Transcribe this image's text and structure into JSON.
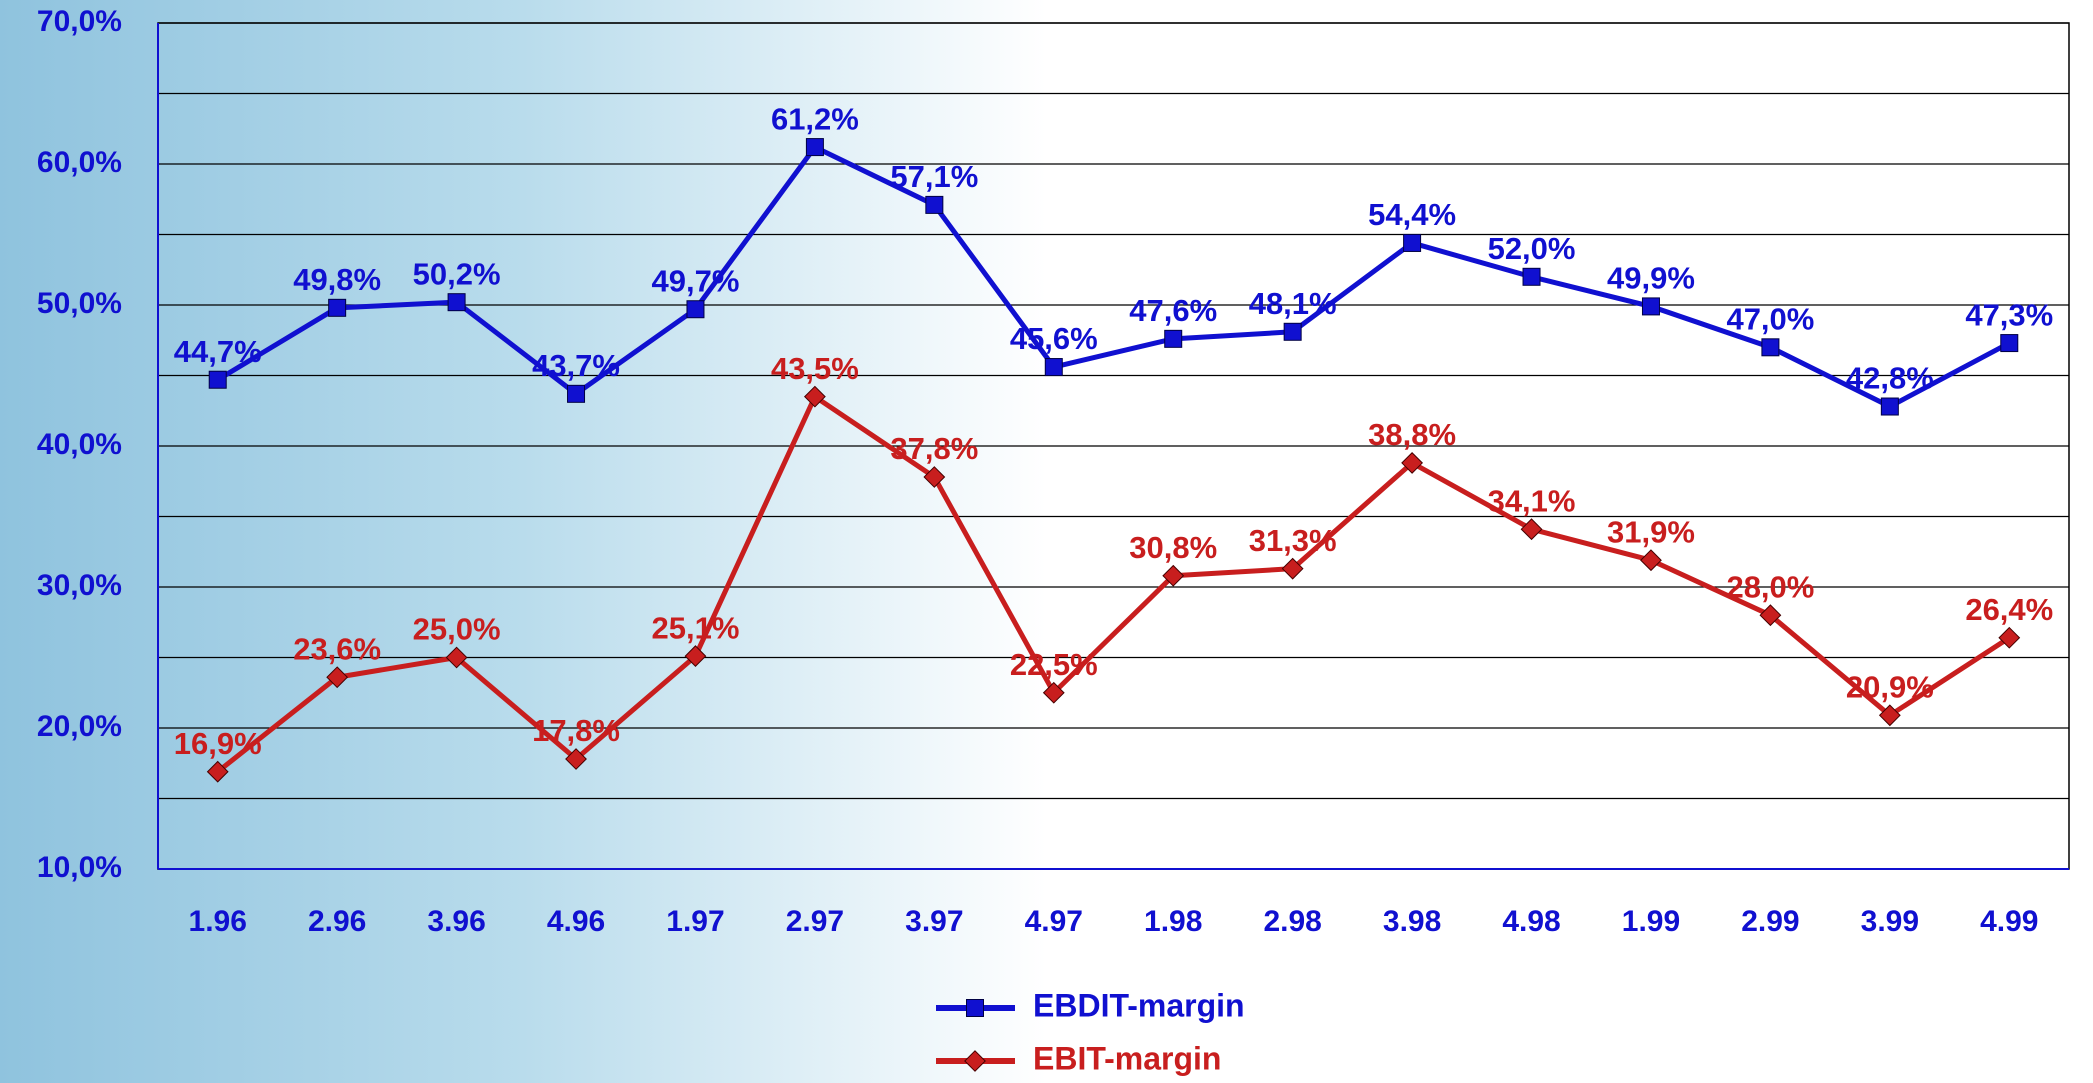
{
  "chart_data": {
    "type": "line",
    "categories": [
      "1.96",
      "2.96",
      "3.96",
      "4.96",
      "1.97",
      "2.97",
      "3.97",
      "4.97",
      "1.98",
      "2.98",
      "3.98",
      "4.98",
      "1.99",
      "2.99",
      "3.99",
      "4.99"
    ],
    "series": [
      {
        "name": "EBDIT-margin",
        "color": "#1010d0",
        "marker": "square",
        "values": [
          44.7,
          49.8,
          50.2,
          43.7,
          49.7,
          61.2,
          57.1,
          45.6,
          47.6,
          48.1,
          54.4,
          52.0,
          49.9,
          47.0,
          42.8,
          47.3
        ],
        "value_labels": [
          "44,7%",
          "49,8%",
          "50,2%",
          "43,7%",
          "49,7%",
          "61,2%",
          "57,1%",
          "45,6%",
          "47,6%",
          "48,1%",
          "54,4%",
          "52,0%",
          "49,9%",
          "47,0%",
          "42,8%",
          "47,3%"
        ]
      },
      {
        "name": "EBIT-margin",
        "color": "#c81e1e",
        "marker": "diamond",
        "values": [
          16.9,
          23.6,
          25.0,
          17.8,
          25.1,
          43.5,
          37.8,
          22.5,
          30.8,
          31.3,
          38.8,
          34.1,
          31.9,
          28.0,
          20.9,
          26.4
        ],
        "value_labels": [
          "16,9%",
          "23,6%",
          "25,0%",
          "17,8%",
          "25,1%",
          "43,5%",
          "37,8%",
          "22,5%",
          "30,8%",
          "31,3%",
          "38,8%",
          "34,1%",
          "31,9%",
          "28,0%",
          "20,9%",
          "26,4%"
        ]
      }
    ],
    "ylim": [
      10,
      70
    ],
    "yticks": [
      {
        "value": 10,
        "label": "10,0%"
      },
      {
        "value": 20,
        "label": "20,0%"
      },
      {
        "value": 30,
        "label": "30,0%"
      },
      {
        "value": 40,
        "label": "40,0%"
      },
      {
        "value": 50,
        "label": "50,0%"
      },
      {
        "value": 60,
        "label": "60,0%"
      },
      {
        "value": 70,
        "label": "70,0%"
      }
    ],
    "minor_yticks": [
      15,
      25,
      35,
      45,
      55,
      65
    ],
    "grid": true
  }
}
